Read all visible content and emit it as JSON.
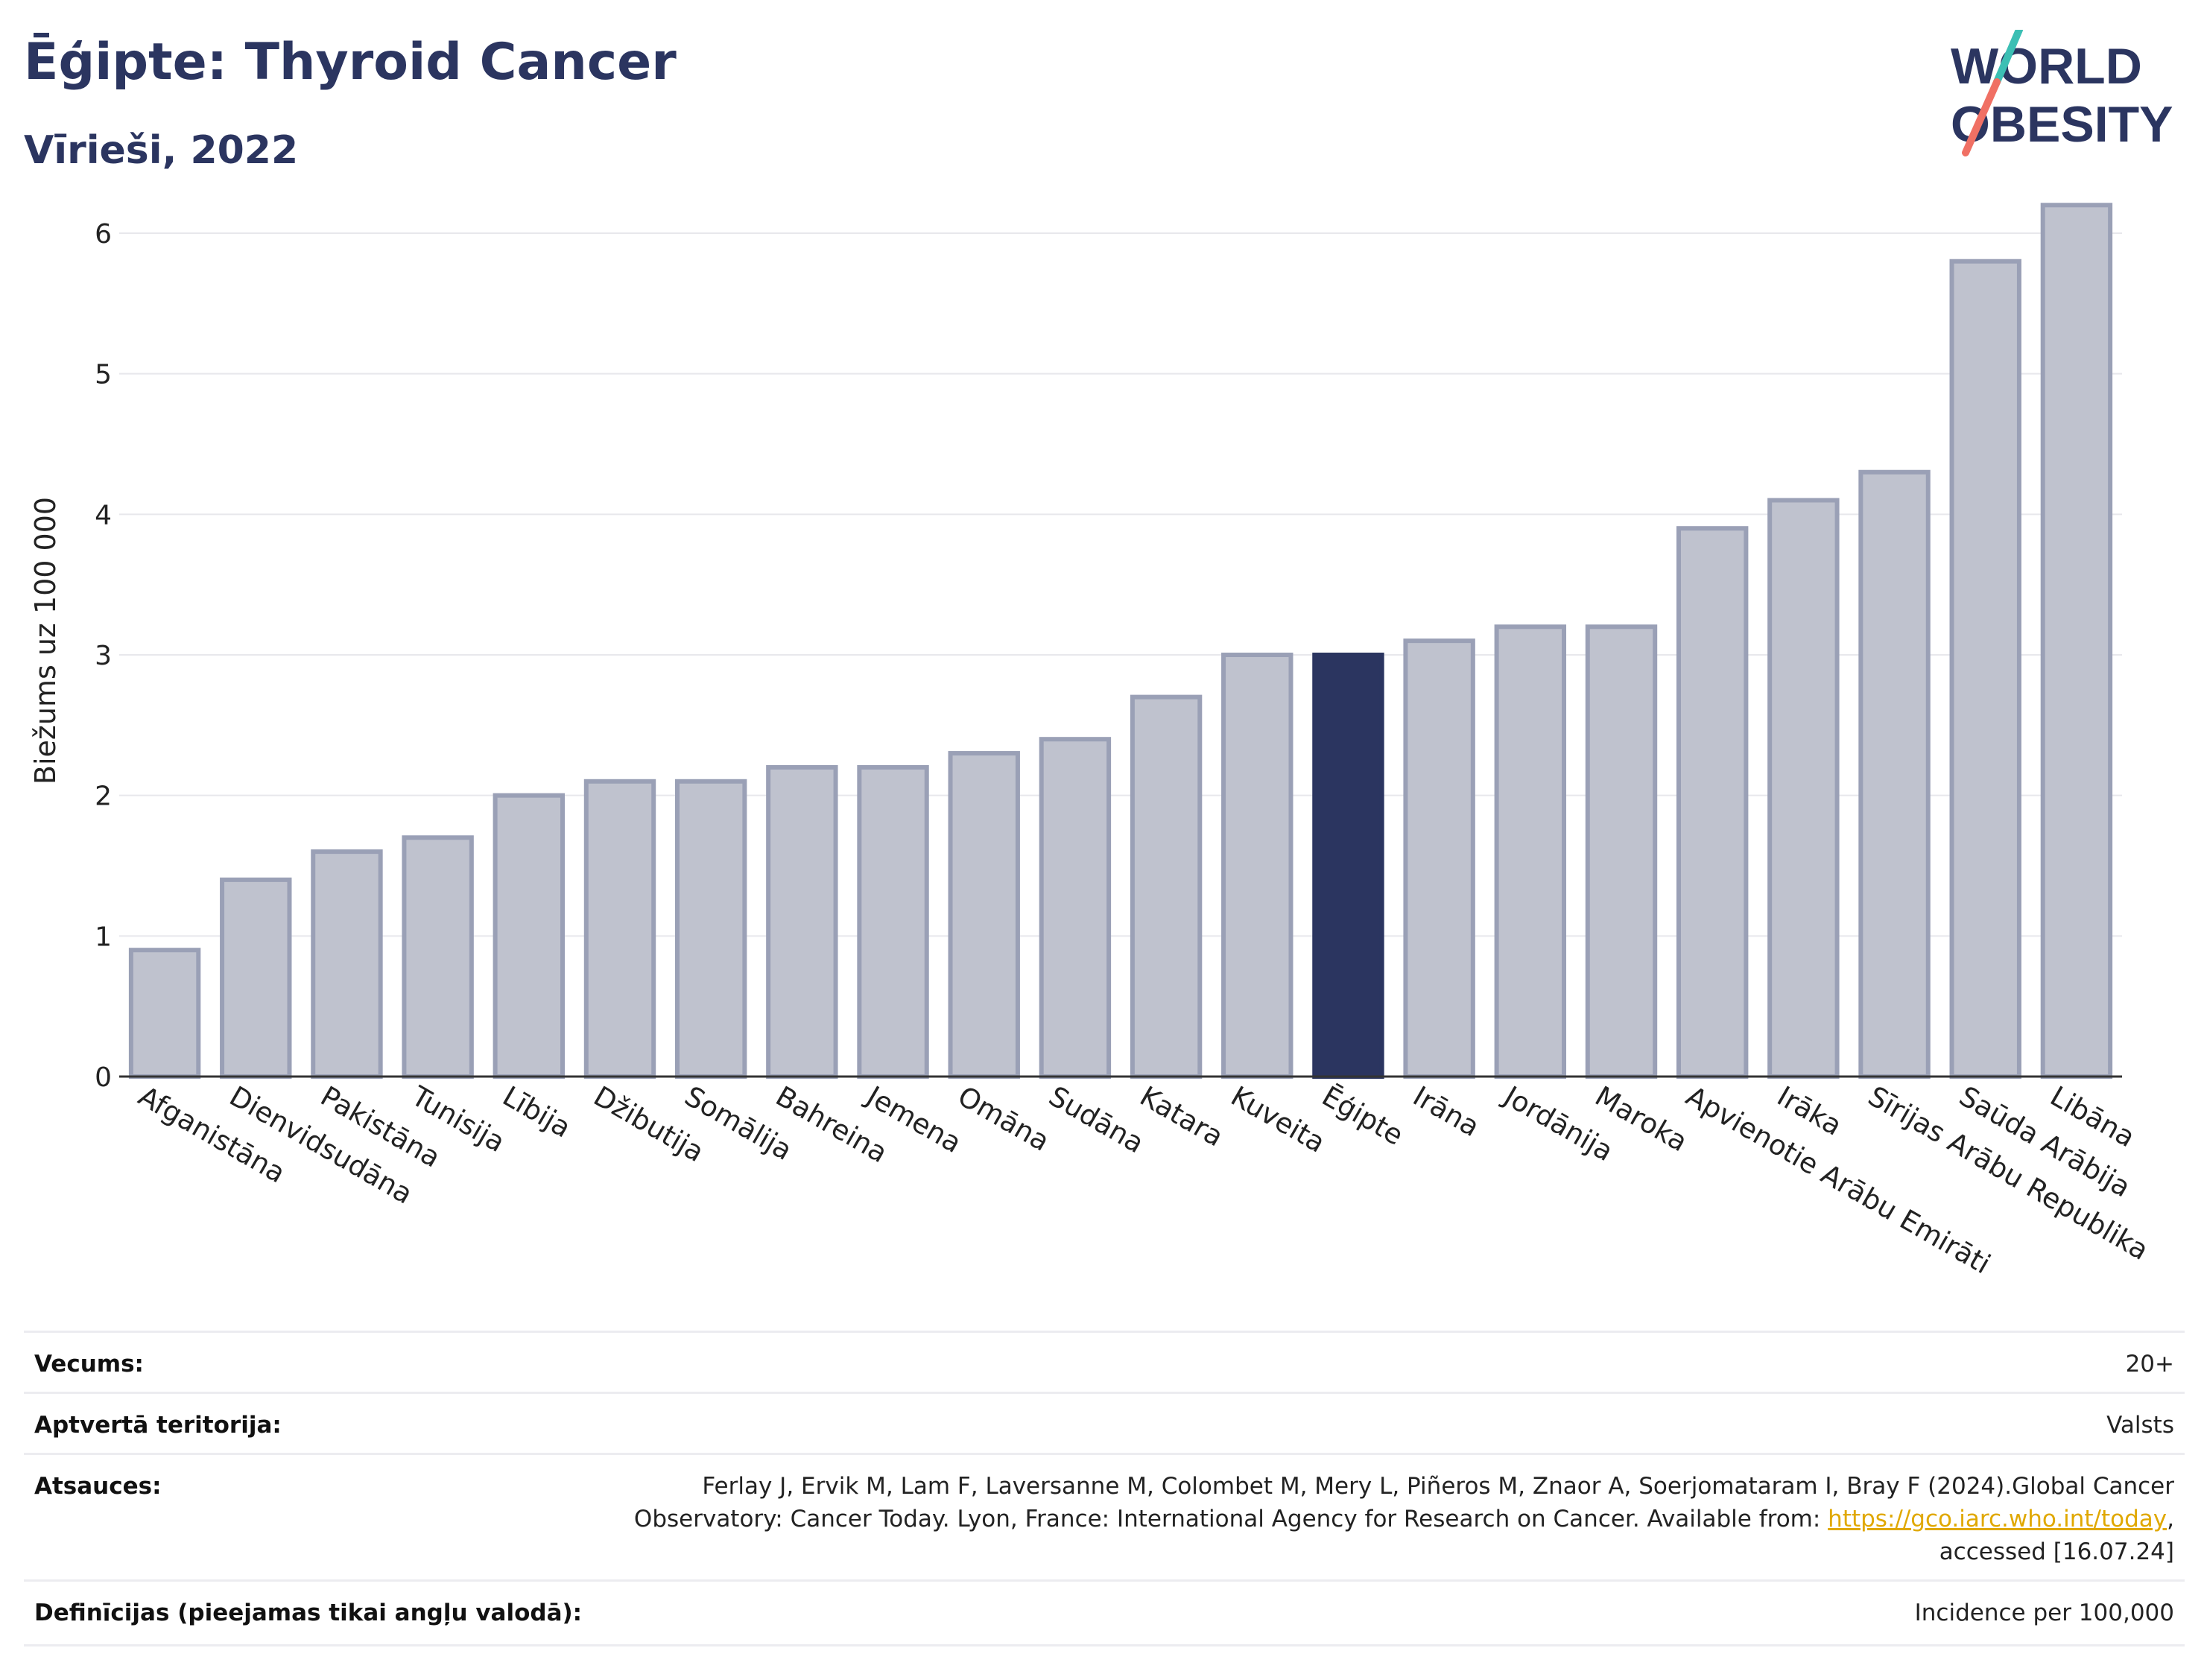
{
  "header": {
    "title": "Ēģipte: Thyroid Cancer",
    "subtitle": "Vīrieši, 2022"
  },
  "logo": {
    "line1": "WORLD",
    "line2": "OBESITY"
  },
  "chart_data": {
    "type": "bar",
    "ylabel": "Biežums uz 100 000",
    "ylim": [
      0,
      6.5
    ],
    "yticks": [
      "0",
      "1",
      "2",
      "3",
      "4",
      "5",
      "6"
    ],
    "categories": [
      "Afganistāna",
      "Dienvidsudāna",
      "Pakistāna",
      "Tunisija",
      "Lībija",
      "Džibutija",
      "Somālija",
      "Bahreina",
      "Jemena",
      "Omāna",
      "Sudāna",
      "Katara",
      "Kuveita",
      "Ēģipte",
      "Irāna",
      "Jordānija",
      "Maroka",
      "Apvienotie Arābu Emirāti",
      "Irāka",
      "Sīrijas Arābu Republika",
      "Saūda Arābija",
      "Libāna"
    ],
    "values": [
      0.9,
      1.4,
      1.6,
      1.7,
      2.0,
      2.1,
      2.1,
      2.2,
      2.2,
      2.3,
      2.4,
      2.7,
      3.0,
      3.0,
      3.1,
      3.2,
      3.2,
      3.9,
      4.1,
      4.3,
      5.8,
      6.2
    ],
    "highlight": "Ēģipte",
    "grid": true,
    "colors": {
      "bar": "#bfc2ce",
      "bar_border": "#9aa0b6",
      "highlight": "#2b3560"
    }
  },
  "info": {
    "rows": [
      {
        "label": "Vecums:",
        "value": "20+"
      },
      {
        "label": "Aptvertā teritorija:",
        "value": "Valsts"
      },
      {
        "label": "Atsauces:",
        "value_line1": "Ferlay J, Ervik M, Lam F, Laversanne M, Colombet M, Mery L, Piñeros M, Znaor A, Soerjomataram I, Bray F (2024).Global Cancer",
        "value_line2a": "Observatory: Cancer Today. Lyon, France: International Agency for Research on Cancer. Available from: ",
        "link": "https://gco.iarc.who.int/today",
        "value_line2b": ",",
        "value_line3": "accessed [16.07.24]"
      },
      {
        "label": "Definīcijas (pieejamas tikai angļu valodā):",
        "value": "Incidence per 100,000"
      }
    ]
  }
}
